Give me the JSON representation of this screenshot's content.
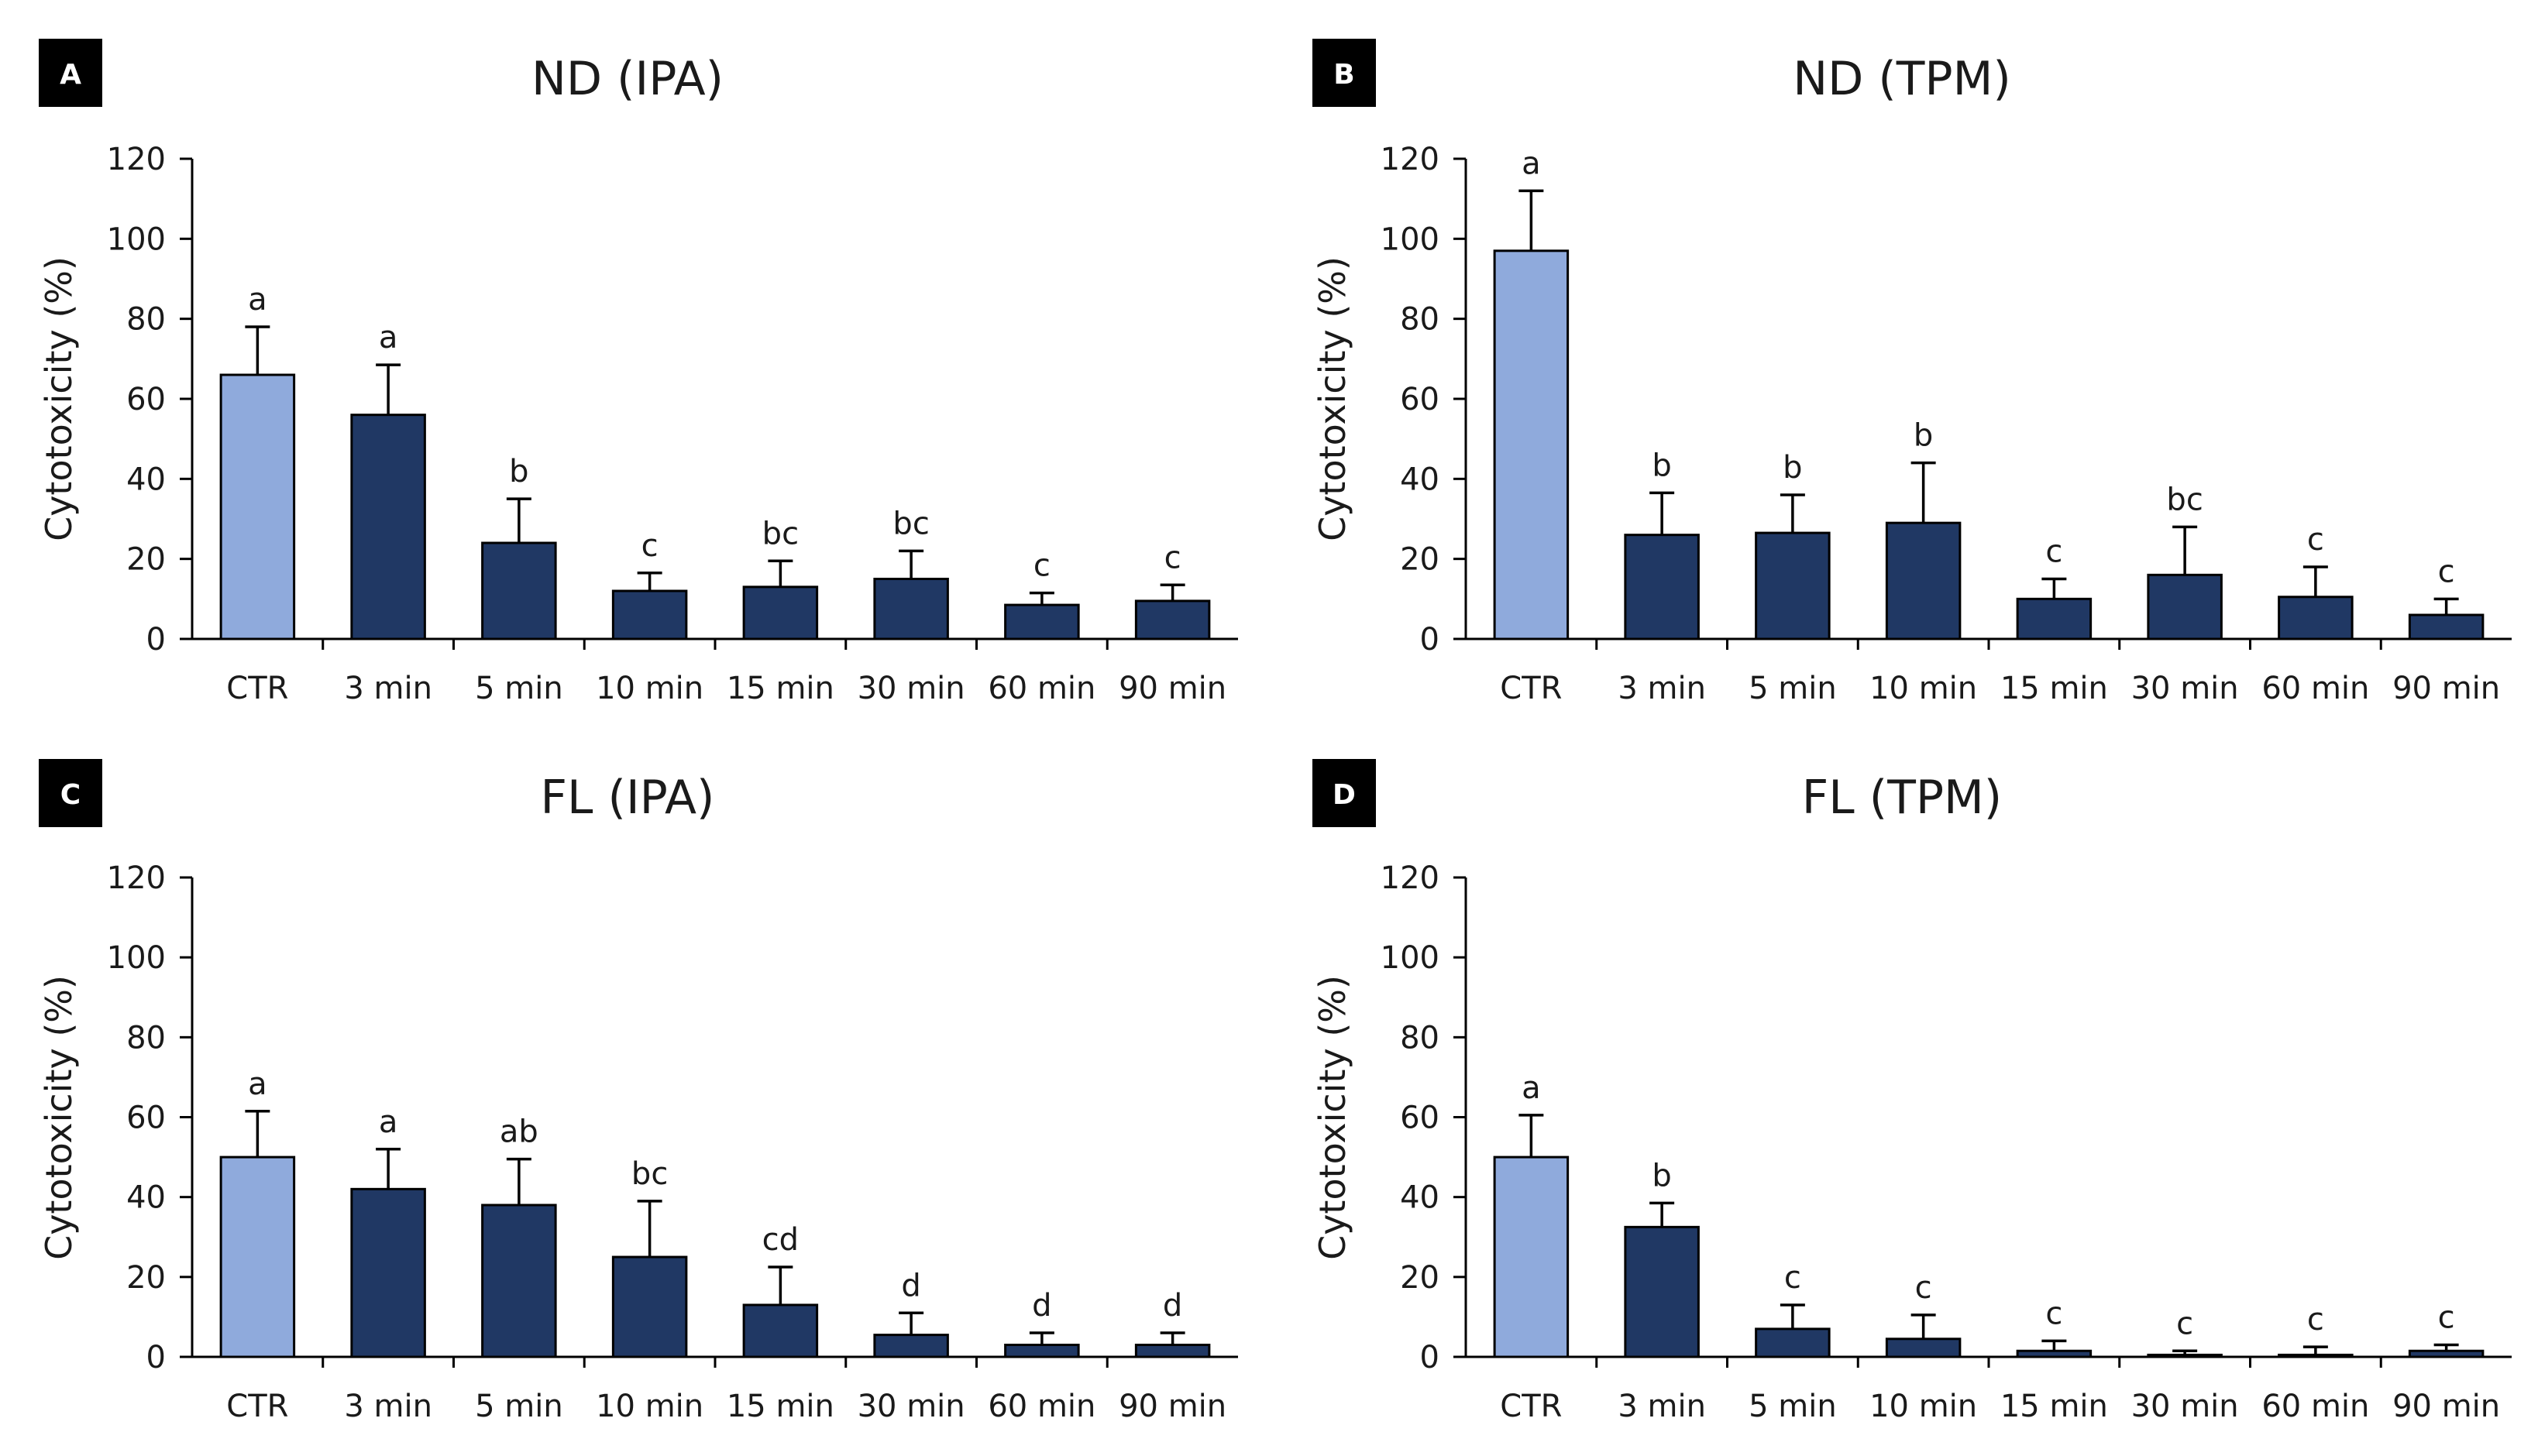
{
  "figure": {
    "colors": {
      "control": "#8faadc",
      "treatment": "#203864",
      "outline": "#000000",
      "axis": "#000000",
      "text": "#1a1a1a"
    },
    "ytitle": "Cytotoxicity (%)"
  },
  "chart_data": [
    {
      "panel": "A",
      "type": "bar",
      "title": "ND (IPA)",
      "ylabel": "Cytotoxicity (%)",
      "ylim": [
        0,
        120
      ],
      "yticks": [
        0,
        20,
        40,
        60,
        80,
        100,
        120
      ],
      "categories": [
        "CTR",
        "3 min",
        "5 min",
        "10 min",
        "15 min",
        "30 min",
        "60 min",
        "90 min"
      ],
      "values": [
        66,
        56,
        24,
        12,
        13,
        15,
        8.5,
        9.5
      ],
      "errors": [
        12,
        12.5,
        11,
        4.5,
        6.5,
        7,
        3,
        4
      ],
      "letters": [
        "a",
        "a",
        "b",
        "c",
        "bc",
        "bc",
        "c",
        "c"
      ]
    },
    {
      "panel": "B",
      "type": "bar",
      "title": "ND (TPM)",
      "ylabel": "Cytotoxicity (%)",
      "ylim": [
        0,
        120
      ],
      "yticks": [
        0,
        20,
        40,
        60,
        80,
        100,
        120
      ],
      "categories": [
        "CTR",
        "3 min",
        "5 min",
        "10 min",
        "15 min",
        "30 min",
        "60 min",
        "90 min"
      ],
      "values": [
        97,
        26,
        26.5,
        29,
        10,
        16,
        10.5,
        6
      ],
      "errors": [
        15,
        10.5,
        9.5,
        15,
        5,
        12,
        7.5,
        4
      ],
      "letters": [
        "a",
        "b",
        "b",
        "b",
        "c",
        "bc",
        "c",
        "c"
      ]
    },
    {
      "panel": "C",
      "type": "bar",
      "title": "FL (IPA)",
      "ylabel": "Cytotoxicity (%)",
      "ylim": [
        0,
        120
      ],
      "yticks": [
        0,
        20,
        40,
        60,
        80,
        100,
        120
      ],
      "categories": [
        "CTR",
        "3 min",
        "5 min",
        "10 min",
        "15 min",
        "30 min",
        "60 min",
        "90 min"
      ],
      "values": [
        50,
        42,
        38,
        25,
        13,
        5.5,
        3,
        3
      ],
      "errors": [
        11.5,
        10,
        11.5,
        14,
        9.5,
        5.5,
        3,
        3
      ],
      "letters": [
        "a",
        "a",
        "ab",
        "bc",
        "cd",
        "d",
        "d",
        "d"
      ]
    },
    {
      "panel": "D",
      "type": "bar",
      "title": "FL (TPM)",
      "ylabel": "Cytotoxicity (%)",
      "ylim": [
        0,
        120
      ],
      "yticks": [
        0,
        20,
        40,
        60,
        80,
        100,
        120
      ],
      "categories": [
        "CTR",
        "3 min",
        "5 min",
        "10 min",
        "15 min",
        "30 min",
        "60 min",
        "90 min"
      ],
      "values": [
        50,
        32.5,
        7,
        4.5,
        1.5,
        0.5,
        0.5,
        1.5
      ],
      "errors": [
        10.5,
        6,
        6,
        6,
        2.5,
        1,
        2,
        1.5
      ],
      "letters": [
        "a",
        "b",
        "c",
        "c",
        "c",
        "c",
        "c",
        "c"
      ]
    }
  ]
}
